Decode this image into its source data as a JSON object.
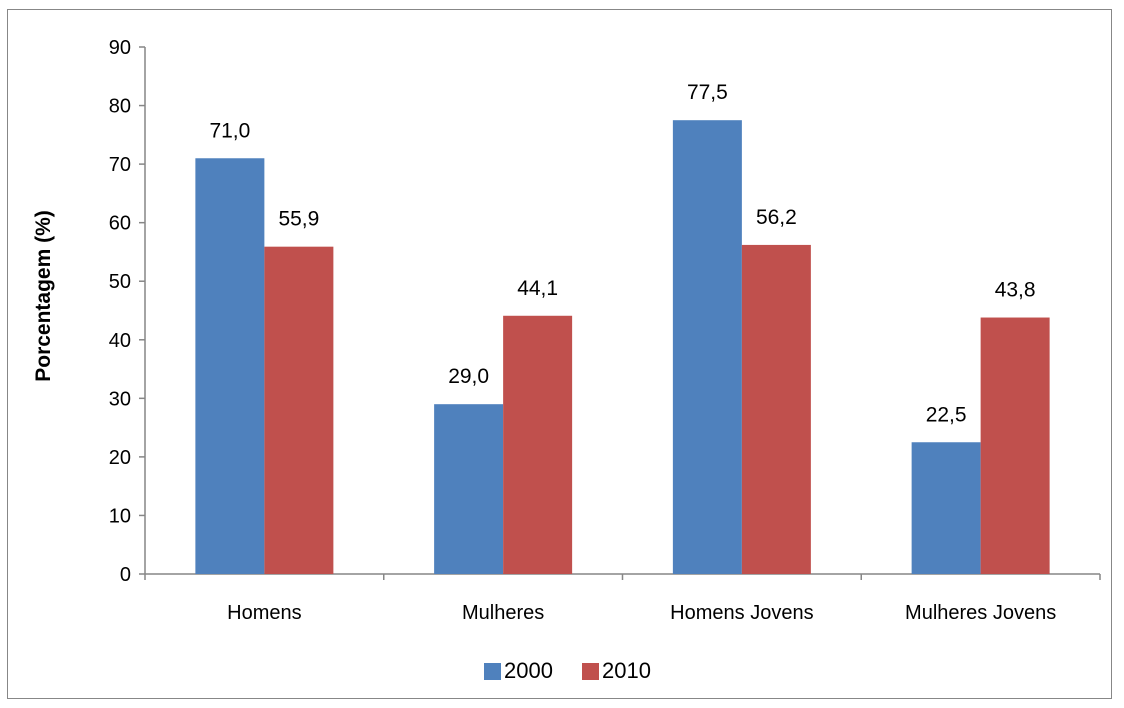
{
  "chart_data": {
    "type": "bar",
    "title": "",
    "xlabel": "",
    "ylabel": "Porcentagem (%)",
    "ylim": [
      0,
      90
    ],
    "yticks": [
      "0",
      "10",
      "20",
      "30",
      "40",
      "50",
      "60",
      "70",
      "80",
      "90"
    ],
    "categories": [
      "Homens",
      "Mulheres",
      "Homens Jovens",
      "Mulheres Jovens"
    ],
    "series": [
      {
        "name": "2000",
        "color": "#4F81BD",
        "values": [
          71.0,
          29.0,
          77.5,
          22.5
        ],
        "labels": [
          "71,0",
          "29,0",
          "77,5",
          "22,5"
        ]
      },
      {
        "name": "2010",
        "color": "#C0504D",
        "values": [
          55.9,
          44.1,
          56.2,
          43.8
        ],
        "labels": [
          "55,9",
          "44,1",
          "56,2",
          "43,8"
        ]
      }
    ],
    "grid": false,
    "legend_position": "bottom"
  }
}
